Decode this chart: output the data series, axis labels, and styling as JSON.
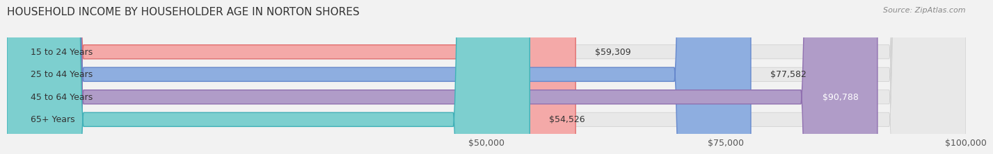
{
  "title": "HOUSEHOLD INCOME BY HOUSEHOLDER AGE IN NORTON SHORES",
  "source": "Source: ZipAtlas.com",
  "categories": [
    "15 to 24 Years",
    "25 to 44 Years",
    "45 to 64 Years",
    "65+ Years"
  ],
  "values": [
    59309,
    77582,
    90788,
    54526
  ],
  "bar_colors": [
    "#f4a9a8",
    "#8eaee0",
    "#b09cc8",
    "#7dcfcf"
  ],
  "bar_edge_colors": [
    "#e07070",
    "#6688cc",
    "#9070b0",
    "#40b0b8"
  ],
  "value_labels": [
    "$59,309",
    "$77,582",
    "$90,788",
    "$54,526"
  ],
  "xlim": [
    0,
    100000
  ],
  "xticks": [
    50000,
    75000,
    100000
  ],
  "xticklabels": [
    "$50,000",
    "$75,000",
    "$100,000"
  ],
  "background_color": "#f2f2f2",
  "bar_background": "#e8e8e8",
  "title_fontsize": 11,
  "source_fontsize": 8,
  "label_fontsize": 9,
  "value_fontsize": 9,
  "bar_height": 0.62,
  "fig_width": 14.06,
  "fig_height": 2.33
}
